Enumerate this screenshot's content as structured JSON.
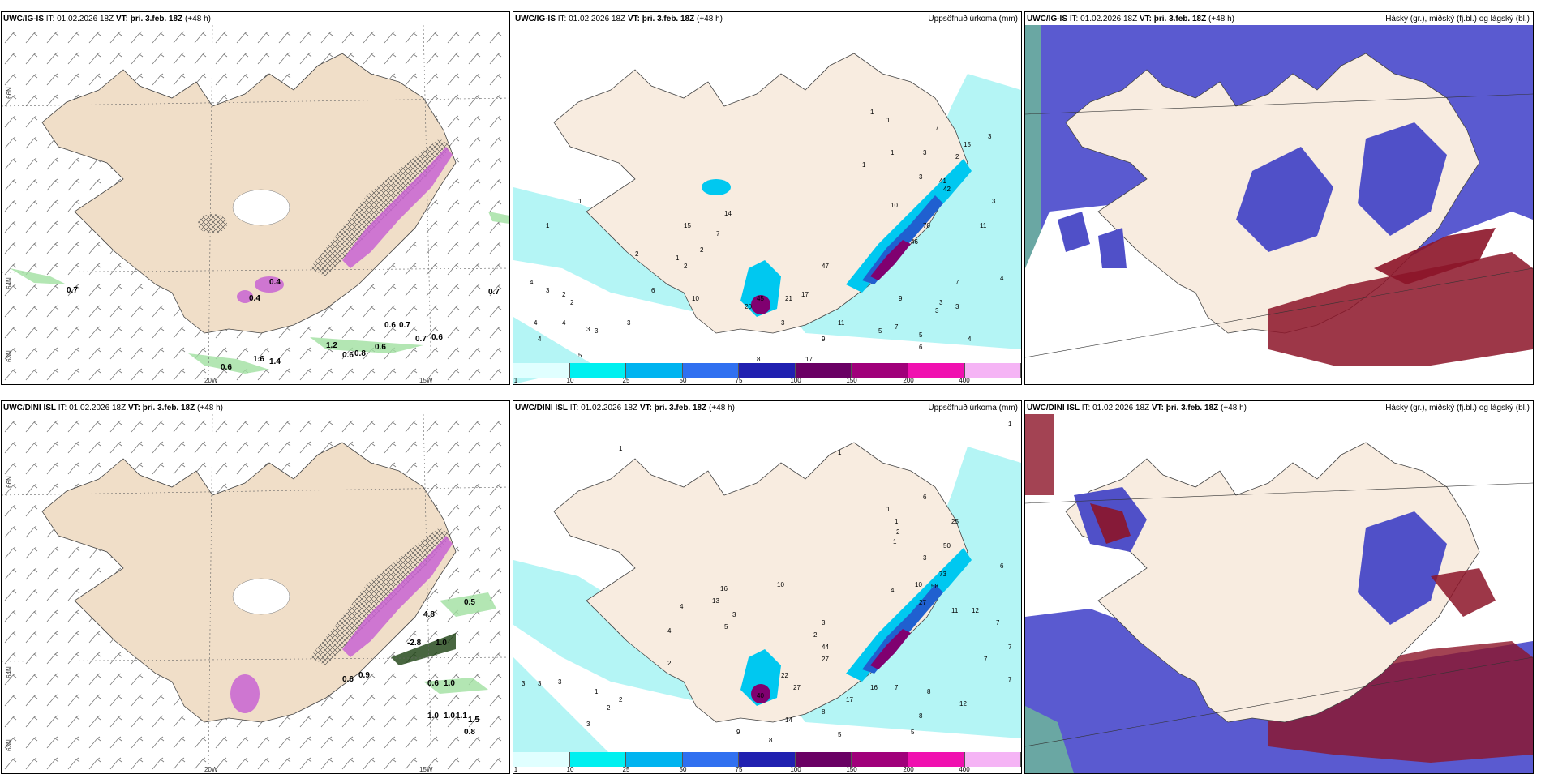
{
  "panels": [
    {
      "model": "UWC/IG-IS",
      "it_label": "IT:",
      "it": "01.02.2026 18Z",
      "vt_label": "VT:",
      "vt": "þri. 3.feb. 18Z",
      "lead": "(+48 h)",
      "right_title": ""
    },
    {
      "model": "UWC/IG-IS",
      "it_label": "IT:",
      "it": "01.02.2026 18Z",
      "vt_label": "VT:",
      "vt": "þri. 3.feb. 18Z",
      "lead": "(+48 h)",
      "right_title": "Uppsöfnuð úrkoma (mm)"
    },
    {
      "model": "UWC/IG-IS",
      "it_label": "IT:",
      "it": "01.02.2026 18Z",
      "vt_label": "VT:",
      "vt": "þri. 3.feb. 18Z",
      "lead": "(+48 h)",
      "right_title": "Háský (gr.), miðský (fj.bl.) og lágský (bl.)"
    },
    {
      "model": "UWC/DINI ISL",
      "it_label": "IT:",
      "it": "01.02.2026 18Z",
      "vt_label": "VT:",
      "vt": "þri. 3.feb. 18Z",
      "lead": "(+48 h)",
      "right_title": ""
    },
    {
      "model": "UWC/DINI ISL",
      "it_label": "IT:",
      "it": "01.02.2026 18Z",
      "vt_label": "VT:",
      "vt": "þri. 3.feb. 18Z",
      "lead": "(+48 h)",
      "right_title": "Uppsöfnuð úrkoma (mm)"
    },
    {
      "model": "UWC/DINI ISL",
      "it_label": "IT:",
      "it": "01.02.2026 18Z",
      "vt_label": "VT:",
      "vt": "þri. 3.feb. 18Z",
      "lead": "(+48 h)",
      "right_title": "Háský (gr.), miðský (fj.bl.) og lágský (bl.)"
    }
  ],
  "axis_ticks": {
    "lat_66": "66N",
    "lat_64": "64N",
    "lat_63": "63N",
    "lon_20": "20W",
    "lon_15": "15W"
  },
  "colorbar": {
    "labels": [
      "1",
      "10",
      "25",
      "50",
      "75",
      "100",
      "150",
      "200",
      "400"
    ],
    "colors": [
      "#e0ffff",
      "#00f0f0",
      "#00b4f0",
      "#3070f0",
      "#2020b0",
      "#6a0064",
      "#a0007a",
      "#f010b0",
      "#f5b4f5"
    ]
  },
  "colors": {
    "land": "#f8ece0",
    "sea_precip": "#b4f5f5",
    "cloud_blue": "#5050c8",
    "cloud_red": "#8c1428",
    "snow_purple": "#c864d2",
    "green_wave": "#a0e0a0"
  },
  "precip_labels_top": [
    "1",
    "1",
    "4",
    "3",
    "2",
    "2",
    "3",
    "4",
    "4",
    "4",
    "5",
    "3",
    "3",
    "2",
    "6",
    "10",
    "15",
    "14",
    "7",
    "2",
    "1",
    "2",
    "20",
    "21",
    "17",
    "45",
    "3",
    "47",
    "11",
    "9",
    "8",
    "17",
    "5",
    "7",
    "9",
    "5",
    "3",
    "7",
    "3",
    "3",
    "4",
    "6",
    "4",
    "15",
    "3",
    "3",
    "1",
    "1",
    "1",
    "3",
    "3",
    "10",
    "41",
    "42",
    "70",
    "46",
    "11",
    "1",
    "7",
    "2"
  ],
  "precip_labels_bottom": [
    "1",
    "1",
    "3",
    "3",
    "3",
    "1",
    "2",
    "2",
    "3",
    "4",
    "16",
    "13",
    "10",
    "4",
    "3",
    "5",
    "2",
    "22",
    "27",
    "2",
    "44",
    "27",
    "40",
    "3",
    "1",
    "1",
    "2",
    "1",
    "6",
    "3",
    "10",
    "25",
    "50",
    "73",
    "58",
    "27",
    "4",
    "11",
    "12",
    "7",
    "7",
    "7",
    "7",
    "8",
    "8",
    "12",
    "16",
    "17",
    "8",
    "14",
    "9",
    "8",
    "5",
    "1",
    "7",
    "5",
    "6"
  ],
  "wind_labels_top": [
    "0.4",
    "0.7",
    "0.7",
    "0.6",
    "0.7",
    "0.7",
    "0.6",
    "1.2",
    "0.6",
    "0.8",
    "0.6",
    "0.6",
    "1.6",
    "1.4",
    "0.4"
  ],
  "wind_labels_bottom": [
    "0.5",
    "1.0",
    "0.6",
    "1.0",
    "1.0",
    "1.0",
    "1.1",
    "0.8",
    "1.5",
    "-2.8",
    "4.8",
    "0.9",
    "0.6"
  ]
}
